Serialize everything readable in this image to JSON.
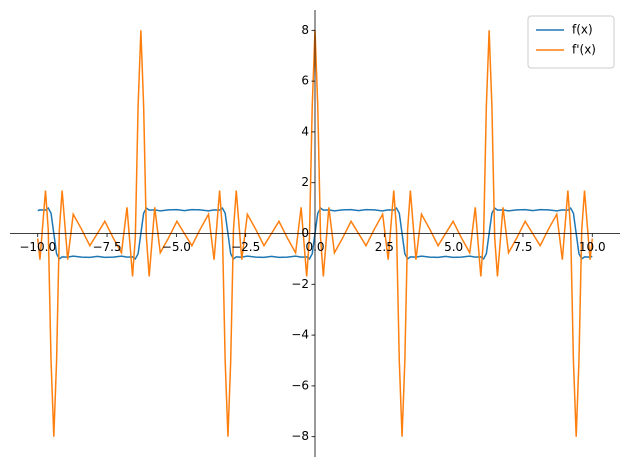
{
  "chart_data": {
    "type": "line",
    "x": [
      -10,
      -9.92,
      -9.72,
      -9.62,
      -9.52,
      -9.42,
      -9.32,
      -9.22,
      -9.12,
      -8.92,
      -8.72,
      -8.42,
      -8.12,
      -7.85,
      -7.58,
      -7.28,
      -6.98,
      -6.78,
      -6.58,
      -6.48,
      -6.38,
      -6.28,
      -6.18,
      -6.08,
      -5.98,
      -5.78,
      -5.58,
      -5.28,
      -4.98,
      -4.71,
      -4.44,
      -4.14,
      -3.84,
      -3.64,
      -3.44,
      -3.34,
      -3.24,
      -3.14,
      -3.04,
      -2.94,
      -2.84,
      -2.64,
      -2.44,
      -2.14,
      -1.84,
      -1.57,
      -1.3,
      -1,
      -0.7,
      -0.5,
      -0.3,
      -0.2,
      -0.1,
      0,
      0.1,
      0.2,
      0.3,
      0.5,
      0.7,
      1,
      1.3,
      1.57,
      1.84,
      2.14,
      2.44,
      2.64,
      2.84,
      2.94,
      3.04,
      3.14,
      3.24,
      3.34,
      3.44,
      3.64,
      3.84,
      4.14,
      4.44,
      4.71,
      4.98,
      5.28,
      5.58,
      5.78,
      5.98,
      6.08,
      6.18,
      6.28,
      6.38,
      6.48,
      6.58,
      6.78,
      6.98,
      7.28,
      7.58,
      7.85,
      8.12,
      8.42,
      8.72,
      8.92,
      9.12,
      9.22,
      9.32,
      9.42,
      9.52,
      9.62,
      9.72,
      9.92,
      10
    ],
    "series": [
      {
        "name": "f(x)",
        "color": "#1f77b4",
        "values": [
          0.9,
          0.93,
          0.92,
          1,
          0.8,
          0,
          -0.8,
          -1,
          -0.92,
          -0.93,
          -0.89,
          -0.93,
          -0.94,
          -0.9,
          -0.94,
          -0.93,
          -0.89,
          -0.93,
          -0.92,
          -1,
          -0.8,
          0,
          0.8,
          1,
          0.92,
          0.93,
          0.89,
          0.93,
          0.94,
          0.9,
          0.94,
          0.93,
          0.89,
          0.93,
          0.92,
          1,
          0.8,
          0,
          -0.8,
          -1,
          -0.92,
          -0.93,
          -0.89,
          -0.93,
          -0.94,
          -0.9,
          -0.94,
          -0.93,
          -0.89,
          -0.93,
          -0.92,
          -1,
          -0.8,
          0,
          0.8,
          1,
          0.92,
          0.93,
          0.89,
          0.93,
          0.94,
          0.9,
          0.94,
          0.93,
          0.89,
          0.93,
          0.92,
          1,
          0.8,
          0,
          -0.8,
          -1,
          -0.92,
          -0.93,
          -0.89,
          -0.93,
          -0.94,
          -0.9,
          -0.94,
          -0.93,
          -0.89,
          -0.93,
          -0.92,
          -1,
          -0.8,
          0,
          0.8,
          1,
          0.92,
          0.93,
          0.89,
          0.93,
          0.94,
          0.9,
          0.94,
          0.93,
          0.89,
          0.93,
          0.92,
          1,
          0.8,
          0,
          -0.8,
          -1,
          -0.92,
          -0.93,
          -0.9
        ]
      },
      {
        "name": "f'(x)",
        "color": "#ff7f0e",
        "values": [
          -0.2,
          -1.03,
          1.69,
          0.15,
          -5.01,
          -8,
          -5.01,
          0.15,
          1.69,
          -1.03,
          0.76,
          0.17,
          -0.48,
          0,
          0.48,
          -0.17,
          -0.76,
          1.03,
          -1.69,
          -0.15,
          5.01,
          8,
          5.01,
          -0.15,
          -1.69,
          1.03,
          -0.76,
          -0.17,
          0.48,
          0,
          -0.48,
          0.17,
          0.76,
          -1.03,
          1.69,
          0.15,
          -5.01,
          -8,
          -5.01,
          0.15,
          1.69,
          -1.03,
          0.76,
          0.17,
          -0.48,
          0,
          0.48,
          -0.17,
          -0.76,
          1.03,
          -1.69,
          -0.15,
          5.01,
          8,
          5.01,
          -0.15,
          -1.69,
          1.03,
          -0.76,
          -0.17,
          0.48,
          0,
          -0.48,
          0.17,
          0.76,
          -1.03,
          1.69,
          0.15,
          -5.01,
          -8,
          -5.01,
          0.15,
          1.69,
          -1.03,
          0.76,
          0.17,
          -0.48,
          0,
          0.48,
          -0.17,
          -0.76,
          1.03,
          -1.69,
          -0.15,
          5.01,
          8,
          5.01,
          -0.15,
          -1.69,
          1.03,
          -0.76,
          -0.17,
          0.48,
          0,
          -0.48,
          0.17,
          0.76,
          -1.03,
          1.69,
          0.15,
          -5.01,
          -8,
          -5.01,
          0.15,
          1.69,
          -1.03,
          -0.2
        ]
      }
    ],
    "xlim": [
      -11,
      11
    ],
    "ylim": [
      -8.8,
      8.8
    ],
    "xticks": [
      {
        "value": -10,
        "label": "−10.0"
      },
      {
        "value": -7.5,
        "label": "−7.5"
      },
      {
        "value": -5,
        "label": "−5.0"
      },
      {
        "value": -2.5,
        "label": "−2.5"
      },
      {
        "value": 0,
        "label": "0.0"
      },
      2.5,
      {
        "value": 5,
        "label": "5.0"
      },
      7.5,
      {
        "value": 10,
        "label": "10.0"
      }
    ],
    "yticks": [
      {
        "value": -8,
        "label": "−8"
      },
      {
        "value": -6,
        "label": "−6"
      },
      {
        "value": -4,
        "label": "−4"
      },
      {
        "value": -2,
        "label": "−2"
      },
      0,
      2,
      4,
      6,
      8
    ],
    "legend": "upper right"
  }
}
